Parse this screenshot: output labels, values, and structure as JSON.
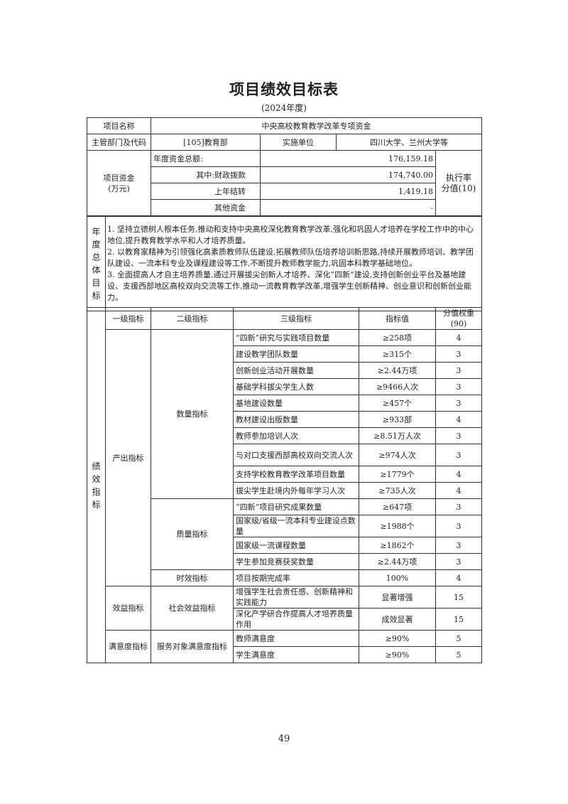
{
  "title": "项目绩效目标表",
  "subtitle": "(2024年度)",
  "project": {
    "name_label": "项目名称",
    "name": "中央高校教育教学改革专项资金",
    "dept_label": "主管部门及代码",
    "dept": "[105]教育部",
    "unit_label": "实施单位",
    "unit": "四川大学、兰州大学等"
  },
  "funds": {
    "label": "项目资金",
    "unit": "(万元)",
    "total_label": "年度资金总额:",
    "total": "176,159.18",
    "fiscal_label": "其中:财政拨款",
    "fiscal": "174,740.00",
    "carryover_label": "上年结转",
    "carryover": "1,419.18",
    "other_label": "其他资金",
    "other": "-",
    "exec_label": "执行率",
    "exec_score": "分值(10)"
  },
  "goals": {
    "label": "年度总体目标",
    "items": [
      "1. 坚持立德树人根本任务,推动和支持中央高校深化教育教学改革,强化和巩固人才培养在学校工作中的中心地位,提升教育教学水平和人才培养质量。",
      "2. 以教育家精神为引领强化高素质教师队伍建设,拓展教师队伍培养培训新思路,持续开展教师培训、教学团队建设、一流本科专业及课程建设等工作,不断提升教师教学能力,巩固本科教学基础地位。",
      "3. 全面提高人才自主培养质量,通过开展拔尖创新人才培养、深化“四新”建设,支持创新创业平台及基地建设、支援西部地区高校双向交流等工作,推动一流教育教学改革,增强学生创新精神、创业意识和创新创业能力。"
    ]
  },
  "indicators": {
    "label": "绩效指标",
    "headers": [
      "一级指标",
      "二级指标",
      "三级指标",
      "指标值",
      "分值权重(90)"
    ],
    "groups": [
      {
        "name": "产出指标",
        "sub": [
          {
            "name": "数量指标",
            "items": [
              {
                "name": "“四新”研究与实践项目数量",
                "value": "≥258项",
                "weight": "4"
              },
              {
                "name": "建设教学团队数量",
                "value": "≥315个",
                "weight": "3"
              },
              {
                "name": "创新创业活动开展数量",
                "value": "≥2.44万项",
                "weight": "3"
              },
              {
                "name": "基础学科拔尖学生人数",
                "value": "≥9466人次",
                "weight": "3"
              },
              {
                "name": "基地建设数量",
                "value": "≥457个",
                "weight": "3"
              },
              {
                "name": "教材建设出版数量",
                "value": "≥933部",
                "weight": "4"
              },
              {
                "name": "教师参加培训人次",
                "value": "≥8.51万人次",
                "weight": "3"
              },
              {
                "name": "与对口支援西部高校双向交流人次",
                "value": "≥974人次",
                "weight": "3"
              },
              {
                "name": "支持学校教育教学改革项目数量",
                "value": "≥1779个",
                "weight": "4"
              },
              {
                "name": "拔尖学生赴境内外每年学习人次",
                "value": "≥735人次",
                "weight": "4"
              }
            ]
          },
          {
            "name": "质量指标",
            "items": [
              {
                "name": "“四新”项目研究成果数量",
                "value": "≥647项",
                "weight": "3"
              },
              {
                "name": "国家级/省级一流本科专业建设点数量",
                "value": "≥1988个",
                "weight": "3"
              },
              {
                "name": "国家级一流课程数量",
                "value": "≥1862个",
                "weight": "3"
              },
              {
                "name": "学生参加竞赛获奖数量",
                "value": "≥2.44万项",
                "weight": "3"
              }
            ]
          },
          {
            "name": "时效指标",
            "items": [
              {
                "name": "项目按期完成率",
                "value": "100%",
                "weight": "4"
              }
            ]
          }
        ]
      },
      {
        "name": "效益指标",
        "sub": [
          {
            "name": "社会效益指标",
            "items": [
              {
                "name": "增强学生社会责任感、创新精神和实践能力",
                "value": "显著增强",
                "weight": "15"
              },
              {
                "name": "深化产学研合作提高人才培养质量作用",
                "value": "成效显著",
                "weight": "15"
              }
            ]
          }
        ]
      },
      {
        "name": "满意度指标",
        "sub": [
          {
            "name": "服务对象满意度指标",
            "items": [
              {
                "name": "教师满意度",
                "value": "≥90%",
                "weight": "5"
              },
              {
                "name": "学生满意度",
                "value": "≥90%",
                "weight": "5"
              }
            ]
          }
        ]
      }
    ]
  },
  "page_number": "49"
}
